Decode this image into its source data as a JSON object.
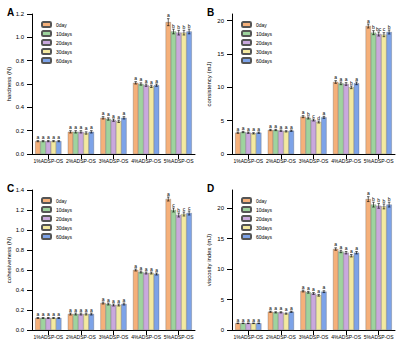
{
  "chart_data": [
    {
      "type": "bar",
      "title": "A",
      "y_label": "hardness (N)",
      "categories": [
        "1%ADSP-OS",
        "2%ADSP-OS",
        "3%ADSP-OS",
        "4%ADSP-OS",
        "5%ADSP-OS"
      ],
      "legend": "top-left",
      "grid": false,
      "ylim": [
        0,
        1.2
      ],
      "yticks": [
        {
          "value": 0,
          "label": "0.0"
        },
        0.2,
        0.4,
        0.6,
        0.8,
        {
          "value": 1,
          "label": "1.0"
        },
        1.2
      ],
      "series": [
        {
          "name": "0day",
          "color": "#f5b07a",
          "values": [
            0.11,
            0.19,
            0.31,
            0.61,
            1.13
          ],
          "errors": [
            0.005,
            0.01,
            0.01,
            0.01,
            0.03
          ],
          "letters": [
            "a",
            "a",
            "a",
            "a",
            "a"
          ]
        },
        {
          "name": "10days",
          "color": "#9ed39e",
          "values": [
            0.11,
            0.19,
            0.3,
            0.6,
            1.05
          ],
          "errors": [
            0.005,
            0.01,
            0.01,
            0.01,
            0.02
          ],
          "letters": [
            "a",
            "a",
            "a",
            "a",
            "b"
          ]
        },
        {
          "name": "20days",
          "color": "#c9a8dd",
          "values": [
            0.11,
            0.19,
            0.29,
            0.59,
            1.04
          ],
          "errors": [
            0.005,
            0.01,
            0.01,
            0.01,
            0.02
          ],
          "letters": [
            "a",
            "a",
            "a",
            "a",
            "b"
          ]
        },
        {
          "name": "30days",
          "color": "#f3e9a0",
          "values": [
            0.11,
            0.18,
            0.28,
            0.58,
            1.04
          ],
          "errors": [
            0.005,
            0.01,
            0.01,
            0.01,
            0.02
          ],
          "letters": [
            "a",
            "a",
            "a",
            "a",
            "b"
          ]
        },
        {
          "name": "60days",
          "color": "#7da3e8",
          "values": [
            0.11,
            0.19,
            0.31,
            0.59,
            1.05
          ],
          "errors": [
            0.005,
            0.01,
            0.01,
            0.01,
            0.02
          ],
          "letters": [
            "a",
            "a",
            "a",
            "a",
            "b"
          ]
        }
      ]
    },
    {
      "type": "bar",
      "title": "B",
      "y_label": "consistency (mJ)",
      "categories": [
        "1%ADSP-OS",
        "2%ADSP-OS",
        "3%ADSP-OS",
        "4%ADSP-OS",
        "5%ADSP-OS"
      ],
      "legend": "top-left",
      "grid": false,
      "ylim": [
        0,
        21
      ],
      "yticks": [
        0,
        5,
        10,
        15,
        20
      ],
      "series": [
        {
          "name": "0day",
          "color": "#f5b07a",
          "values": [
            3.2,
            3.6,
            5.6,
            10.8,
            19.2
          ],
          "errors": [
            0.1,
            0.1,
            0.15,
            0.2,
            0.3
          ],
          "letters": [
            "a",
            "a",
            "a",
            "a",
            "a"
          ]
        },
        {
          "name": "10days",
          "color": "#9ed39e",
          "values": [
            3.3,
            3.6,
            5.4,
            10.6,
            18.2
          ],
          "errors": [
            0.1,
            0.1,
            0.15,
            0.2,
            0.3
          ],
          "letters": [
            "a",
            "a",
            "b",
            "a",
            "b"
          ]
        },
        {
          "name": "20days",
          "color": "#c9a8dd",
          "values": [
            3.2,
            3.5,
            5.1,
            10.5,
            18.0
          ],
          "errors": [
            0.1,
            0.1,
            0.15,
            0.2,
            0.3
          ],
          "letters": [
            "a",
            "a",
            "c",
            "a",
            "bc"
          ]
        },
        {
          "name": "30days",
          "color": "#f3e9a0",
          "values": [
            3.1,
            3.4,
            4.8,
            10.0,
            17.9
          ],
          "errors": [
            0.1,
            0.1,
            0.15,
            0.2,
            0.3
          ],
          "letters": [
            "a",
            "a",
            "d",
            "b",
            "c"
          ]
        },
        {
          "name": "60days",
          "color": "#7da3e8",
          "values": [
            3.2,
            3.5,
            5.5,
            10.6,
            18.3
          ],
          "errors": [
            0.1,
            0.1,
            0.15,
            0.2,
            0.3
          ],
          "letters": [
            "a",
            "a",
            "a",
            "a",
            "b"
          ]
        }
      ]
    },
    {
      "type": "bar",
      "title": "C",
      "y_label": "cohesiveness (N)",
      "categories": [
        "1%ADSP-OS",
        "2%ADSP-OS",
        "3%ADSP-OS",
        "4%ADSP-OS",
        "5%ADSP-OS"
      ],
      "legend": "top-left",
      "grid": false,
      "ylim": [
        0,
        1.4
      ],
      "yticks": [
        {
          "value": 0,
          "label": "0.0"
        },
        0.2,
        0.4,
        0.6,
        0.8,
        {
          "value": 1,
          "label": "1.0"
        },
        1.2,
        1.4
      ],
      "series": [
        {
          "name": "0day",
          "color": "#f5b07a",
          "values": [
            0.12,
            0.16,
            0.27,
            0.6,
            1.31
          ],
          "errors": [
            0.005,
            0.01,
            0.01,
            0.01,
            0.02
          ],
          "letters": [
            "a",
            "a",
            "a",
            "a",
            "a"
          ]
        },
        {
          "name": "10days",
          "color": "#9ed39e",
          "values": [
            0.12,
            0.16,
            0.26,
            0.58,
            1.2
          ],
          "errors": [
            0.005,
            0.01,
            0.01,
            0.01,
            0.02
          ],
          "letters": [
            "a",
            "a",
            "a",
            "a",
            "c"
          ]
        },
        {
          "name": "20days",
          "color": "#c9a8dd",
          "values": [
            0.12,
            0.16,
            0.25,
            0.57,
            1.15
          ],
          "errors": [
            0.005,
            0.01,
            0.01,
            0.01,
            0.02
          ],
          "letters": [
            "a",
            "a",
            "a",
            "a",
            "b"
          ]
        },
        {
          "name": "30days",
          "color": "#f3e9a0",
          "values": [
            0.12,
            0.16,
            0.25,
            0.57,
            1.16
          ],
          "errors": [
            0.005,
            0.01,
            0.01,
            0.01,
            0.02
          ],
          "letters": [
            "a",
            "a",
            "a",
            "a",
            "c"
          ]
        },
        {
          "name": "60days",
          "color": "#7da3e8",
          "values": [
            0.12,
            0.16,
            0.26,
            0.56,
            1.17
          ],
          "errors": [
            0.005,
            0.01,
            0.01,
            0.01,
            0.02
          ],
          "letters": [
            "a",
            "a",
            "a",
            "a",
            "c"
          ]
        }
      ]
    },
    {
      "type": "bar",
      "title": "D",
      "y_label": "viscosity index (mJ)",
      "categories": [
        "1%ADSP-OS",
        "2%ADSP-OS",
        "3%ADSP-OS",
        "4%ADSP-OS",
        "5%ADSP-OS"
      ],
      "legend": "top-left",
      "grid": false,
      "ylim": [
        0,
        23
      ],
      "yticks": [
        0,
        5,
        10,
        15,
        20
      ],
      "series": [
        {
          "name": "0day",
          "color": "#f5b07a",
          "values": [
            1.1,
            3.0,
            6.4,
            13.3,
            21.5
          ],
          "errors": [
            0.05,
            0.1,
            0.15,
            0.2,
            0.4
          ],
          "letters": [
            "a",
            "a",
            "a",
            "a",
            "a"
          ]
        },
        {
          "name": "10days",
          "color": "#9ed39e",
          "values": [
            1.1,
            2.9,
            6.2,
            12.9,
            20.6
          ],
          "errors": [
            0.05,
            0.1,
            0.15,
            0.2,
            0.4
          ],
          "letters": [
            "a",
            "a",
            "a",
            "a",
            "b"
          ]
        },
        {
          "name": "20days",
          "color": "#c9a8dd",
          "values": [
            1.1,
            2.9,
            6.0,
            12.7,
            20.4
          ],
          "errors": [
            0.05,
            0.1,
            0.15,
            0.2,
            0.4
          ],
          "letters": [
            "a",
            "a",
            "a",
            "a",
            "b"
          ]
        },
        {
          "name": "30days",
          "color": "#f3e9a0",
          "values": [
            1.1,
            2.7,
            5.7,
            12.2,
            20.3
          ],
          "errors": [
            0.05,
            0.1,
            0.15,
            0.2,
            0.4
          ],
          "letters": [
            "a",
            "a",
            "a",
            "a",
            "b"
          ]
        },
        {
          "name": "60days",
          "color": "#7da3e8",
          "values": [
            1.1,
            3.0,
            6.3,
            12.7,
            20.6
          ],
          "errors": [
            0.05,
            0.1,
            0.15,
            0.2,
            0.4
          ],
          "letters": [
            "a",
            "a",
            "a",
            "a",
            "b"
          ]
        }
      ]
    }
  ]
}
